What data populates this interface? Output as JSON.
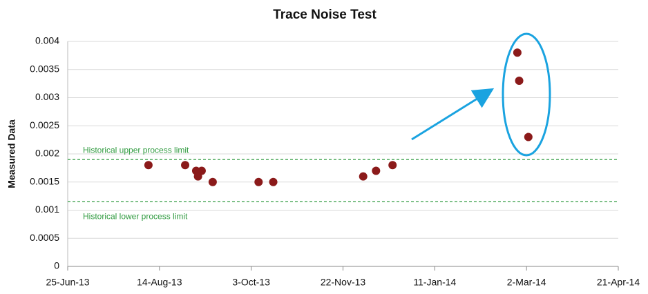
{
  "chart_data": {
    "type": "scatter",
    "title": "Trace Noise Test",
    "y_label": "Measured Data",
    "x": [
      41494,
      41514,
      41520,
      41523,
      41521,
      41529,
      41554,
      41562,
      41611,
      41618,
      41627,
      41695,
      41696,
      41701
    ],
    "series": [
      {
        "color": "#8b1a1a",
        "values": [
          0.0018,
          0.0018,
          0.0017,
          0.0017,
          0.0016,
          0.0015,
          0.0015,
          0.0015,
          0.0016,
          0.0017,
          0.0018,
          0.0038,
          0.0033,
          0.0023
        ]
      }
    ],
    "limit_lines": [
      {
        "name": "Historical upper process limit",
        "value": 0.0019,
        "color": "#2e9a3e"
      },
      {
        "name": "Historical lower process limit",
        "value": 0.00115,
        "color": "#2e9a3e"
      }
    ],
    "xlim": [
      41450,
      41750
    ],
    "xticks": [
      {
        "value": 41450,
        "label": "25-Jun-13"
      },
      {
        "value": 41500,
        "label": "14-Aug-13"
      },
      {
        "value": 41550,
        "label": "3-Oct-13"
      },
      {
        "value": 41600,
        "label": "22-Nov-13"
      },
      {
        "value": 41650,
        "label": "11-Jan-14"
      },
      {
        "value": 41700,
        "label": "2-Mar-14"
      },
      {
        "value": 41750,
        "label": "21-Apr-14"
      }
    ],
    "ylim": [
      0,
      0.004
    ],
    "yticks": [
      0,
      0.0005,
      0.001,
      0.0015,
      0.002,
      0.0025,
      0.003,
      0.0035,
      0.004
    ],
    "grid": true
  }
}
